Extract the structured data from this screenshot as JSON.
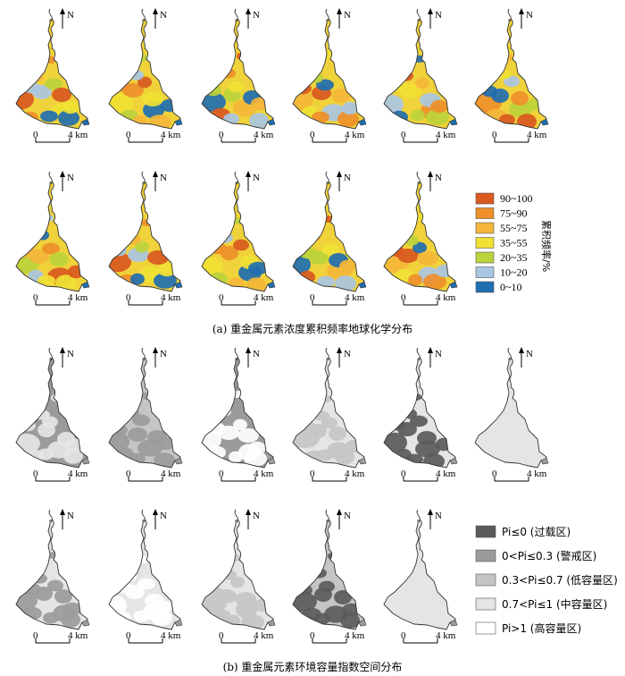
{
  "caption_a": "(a) 重金属元素浓度累积频率地球化学分布",
  "caption_b": "(b) 重金属元素环境容量指数空间分布",
  "north_label": "N",
  "scale_zero": "0",
  "scale_dist": "4 km",
  "legend_a_title": "累积频率/%",
  "legend_a": [
    {
      "label": "90~100",
      "color": "#d9591f"
    },
    {
      "label": "75~90",
      "color": "#ee8f2a"
    },
    {
      "label": "55~75",
      "color": "#f4b63a"
    },
    {
      "label": "35~55",
      "color": "#f0e134"
    },
    {
      "label": "20~35",
      "color": "#bcd33b"
    },
    {
      "label": "10~20",
      "color": "#a9c6e3"
    },
    {
      "label": "0~10",
      "color": "#1f6eb0"
    }
  ],
  "legend_b": [
    {
      "label": "Pi≤0 (过载区)",
      "color": "#5b5b5b"
    },
    {
      "label": "0<Pi≤0.3 (警戒区)",
      "color": "#9b9b9b"
    },
    {
      "label": "0.3<Pi≤0.7 (低容量区)",
      "color": "#c5c5c5"
    },
    {
      "label": "0.7<Pi≤1 (中容量区)",
      "color": "#e5e5e5"
    },
    {
      "label": "Pi>1 (高容量区)",
      "color": "#ffffff"
    }
  ]
}
